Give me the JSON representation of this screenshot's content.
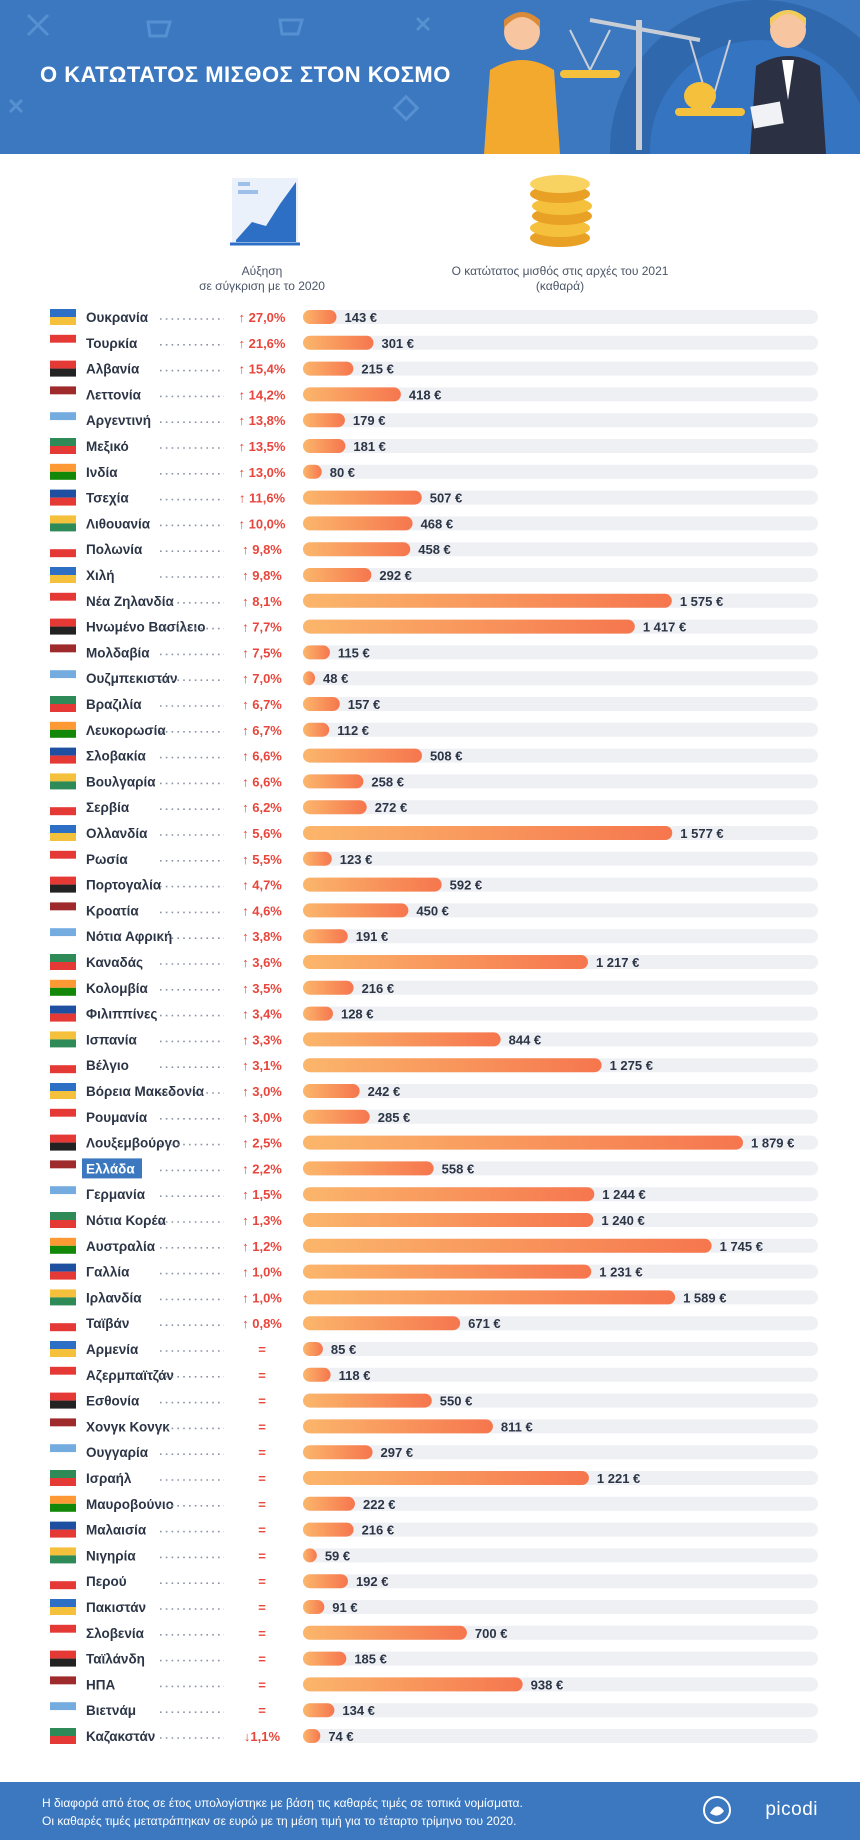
{
  "header": {
    "title": "Ο ΚΑΤΩΤΑΤΟΣ ΜΙΣΘΟΣ ΣΤΟΝ ΚΟΣΜΟ"
  },
  "legend": {
    "growth_label_1": "Αύξηση",
    "growth_label_2": "σε σύγκριση με το 2020",
    "wage_label_1": "Ο κατώτατος μισθός στις αρχές του 2021",
    "wage_label_2": "(καθαρά)"
  },
  "colors": {
    "header_bg": "#3b78c0",
    "bar_start": "#fbb66b",
    "bar_end": "#f6764e",
    "up_arrow": "#e8463c",
    "track": "#eef0f4",
    "highlight": "#3b78c0"
  },
  "chart_data": {
    "type": "bar",
    "orientation": "horizontal",
    "currency_suffix": " €",
    "highlight": "Ελλάδα",
    "categories": [
      "Ουκρανία",
      "Τουρκία",
      "Αλβανία",
      "Λεττονία",
      "Αργεντινή",
      "Μεξικό",
      "Ινδία",
      "Τσεχία",
      "Λιθουανία",
      "Πολωνία",
      "Χιλή",
      "Νέα Ζηλανδία",
      "Ηνωμένο Βασίλειο",
      "Μολδαβία",
      "Ουζμπεκιστάν",
      "Βραζιλία",
      "Λευκορωσία",
      "Σλοβακία",
      "Βουλγαρία",
      "Σερβία",
      "Ολλανδία",
      "Ρωσία",
      "Πορτογαλία",
      "Κροατία",
      "Νότια Αφρική",
      "Καναδάς",
      "Κολομβία",
      "Φιλιππίνες",
      "Ισπανία",
      "Βέλγιο",
      "Βόρεια Μακεδονία",
      "Ρουμανία",
      "Λουξεμβούργο",
      "Ελλάδα",
      "Γερμανία",
      "Νότια Κορέα",
      "Αυστραλία",
      "Γαλλία",
      "Ιρλανδία",
      "Ταϊβάν",
      "Αρμενία",
      "Αζερμπαϊτζάν",
      "Εσθονία",
      "Χονγκ Κονγκ",
      "Ουγγαρία",
      "Ισραήλ",
      "Μαυροβούνιο",
      "Μαλαισία",
      "Νιγηρία",
      "Περού",
      "Πακιστάν",
      "Σλοβενία",
      "Ταϊλάνδη",
      "ΗΠΑ",
      "Βιετνάμ",
      "Καζακστάν"
    ],
    "series": [
      {
        "name": "Αύξηση σε σύγκριση με το 2020",
        "values": [
          "↑ 27,0%",
          "↑ 21,6%",
          "↑ 15,4%",
          "↑ 14,2%",
          "↑ 13,8%",
          "↑ 13,5%",
          "↑ 13,0%",
          "↑ 11,6%",
          "↑ 10,0%",
          "↑ 9,8%",
          "↑ 9,8%",
          "↑ 8,1%",
          "↑ 7,7%",
          "↑ 7,5%",
          "↑ 7,0%",
          "↑ 6,7%",
          "↑ 6,7%",
          "↑ 6,6%",
          "↑ 6,6%",
          "↑ 6,2%",
          "↑ 5,6%",
          "↑ 5,5%",
          "↑ 4,7%",
          "↑ 4,6%",
          "↑ 3,8%",
          "↑ 3,6%",
          "↑ 3,5%",
          "↑ 3,4%",
          "↑ 3,3%",
          "↑ 3,1%",
          "↑ 3,0%",
          "↑ 3,0%",
          "↑ 2,5%",
          "↑ 2,2%",
          "↑ 1,5%",
          "↑ 1,3%",
          "↑ 1,2%",
          "↑ 1,0%",
          "↑ 1,0%",
          "↑ 0,8%",
          "=",
          "=",
          "=",
          "=",
          "=",
          "=",
          "=",
          "=",
          "=",
          "=",
          "=",
          "=",
          "=",
          "=",
          "=",
          "↓1,1%"
        ]
      },
      {
        "name": "Ο κατώτατος μισθός στις αρχές του 2021 (καθαρά)",
        "values": [
          143,
          301,
          215,
          418,
          179,
          181,
          80,
          507,
          468,
          458,
          292,
          1575,
          1417,
          115,
          48,
          157,
          112,
          508,
          258,
          272,
          1577,
          123,
          592,
          450,
          191,
          1217,
          216,
          128,
          844,
          1275,
          242,
          285,
          1879,
          558,
          1244,
          1240,
          1745,
          1231,
          1589,
          671,
          85,
          118,
          550,
          811,
          297,
          1221,
          222,
          216,
          59,
          192,
          91,
          700,
          185,
          938,
          134,
          74
        ],
        "value_labels": [
          "143 €",
          "301 €",
          "215 €",
          "418 €",
          "179 €",
          "181 €",
          "80 €",
          "507 €",
          "468 €",
          "458 €",
          "292 €",
          "1 575 €",
          "1 417 €",
          "115 €",
          "48 €",
          "157 €",
          "112 €",
          "508 €",
          "258 €",
          "272 €",
          "1 577 €",
          "123 €",
          "592 €",
          "450 €",
          "191 €",
          "1 217 €",
          "216 €",
          "128 €",
          "844 €",
          "1 275 €",
          "242 €",
          "285 €",
          "1 879 €",
          "558 €",
          "1 244 €",
          "1 240 €",
          "1 745 €",
          "1 231 €",
          "1 589 €",
          "671 €",
          "85 €",
          "118 €",
          "550 €",
          "811 €",
          "297 €",
          "1 221 €",
          "222 €",
          "216 €",
          "59 €",
          "192 €",
          "91 €",
          "700 €",
          "185 €",
          "938 €",
          "134 €",
          "74 €"
        ]
      }
    ],
    "xlim": [
      0,
      2000
    ]
  },
  "footer": {
    "note_1": "Η διαφορά από έτος σε έτος υπολογίστηκε με βάση τις καθαρές τιμές σε τοπικά νομίσματα.",
    "note_2": "Οι καθαρές τιμές μετατράπηκαν σε ευρώ με τη μέση τιμή για το τέταρτο τρίμηνο του 2020.",
    "brand": "picodi"
  }
}
